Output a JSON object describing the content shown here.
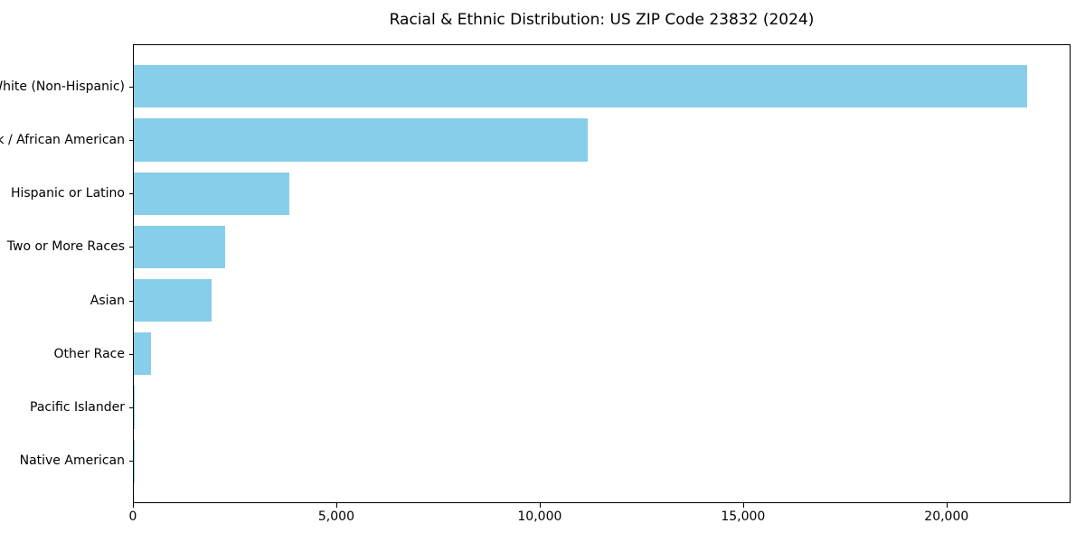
{
  "figure": {
    "title": "Racial & Ethnic Distribution: US ZIP Code 23832 (2024)"
  },
  "chart_data": {
    "type": "bar",
    "orientation": "horizontal",
    "title": "Racial & Ethnic Distribution: US ZIP Code 23832 (2024)",
    "categories": [
      "White (Non-Hispanic)",
      "Black / African American",
      "Hispanic or Latino",
      "Two or More Races",
      "Asian",
      "Other Race",
      "Pacific Islander",
      "Native American"
    ],
    "values": [
      21970,
      11160,
      3830,
      2240,
      1920,
      415,
      25,
      12
    ],
    "bar_color": "#87CEEB",
    "frame_color": "#000000",
    "text_color": "#000000",
    "xlabel": "",
    "ylabel": "",
    "xlim": [
      0,
      23050
    ],
    "x_ticks": [
      0,
      5000,
      10000,
      15000,
      20000
    ],
    "x_tick_labels": [
      "0",
      "5,000",
      "10,000",
      "15,000",
      "20,000"
    ],
    "grid": false,
    "legend": null,
    "bar_width_fraction": 0.8
  }
}
